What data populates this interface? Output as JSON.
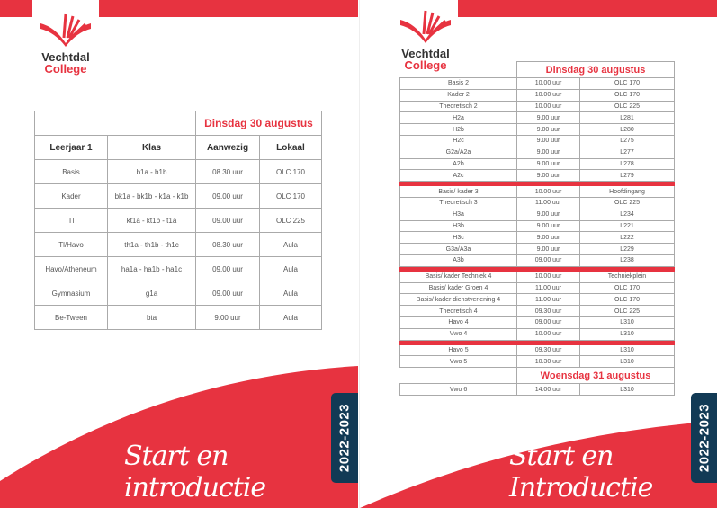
{
  "brand": {
    "name_line1": "Vechtdal",
    "name_line2": "College",
    "color": "#e73340",
    "dark": "#123a55"
  },
  "left": {
    "day": "Dinsdag 30 augustus",
    "headers": [
      "Leerjaar 1",
      "Klas",
      "Aanwezig",
      "Lokaal"
    ],
    "rows": [
      [
        "Basis",
        "b1a - b1b",
        "08.30 uur",
        "OLC 170"
      ],
      [
        "Kader",
        "bk1a - bk1b - k1a - k1b",
        "09.00 uur",
        "OLC 170"
      ],
      [
        "Tl",
        "kt1a - kt1b - t1a",
        "09.00 uur",
        "OLC 225"
      ],
      [
        "Tl/Havo",
        "th1a - th1b - th1c",
        "08.30 uur",
        "Aula"
      ],
      [
        "Havo/Atheneum",
        "ha1a - ha1b - ha1c",
        "09.00 uur",
        "Aula"
      ],
      [
        "Gymnasium",
        "g1a",
        "09.00 uur",
        "Aula"
      ],
      [
        "Be-Tween",
        "bta",
        "9.00 uur",
        "Aula"
      ]
    ],
    "title": "Start en introductie",
    "year": "2022-2023"
  },
  "right": {
    "day1": "Dinsdag 30 augustus",
    "groups": [
      [
        [
          "Basis 2",
          "10.00 uur",
          "OLC 170"
        ],
        [
          "Kader 2",
          "10.00 uur",
          "OLC 170"
        ],
        [
          "Theoretisch 2",
          "10.00 uur",
          "OLC 225"
        ],
        [
          "H2a",
          "9.00 uur",
          "L281"
        ],
        [
          "H2b",
          "9.00 uur",
          "L280"
        ],
        [
          "H2c",
          "9.00 uur",
          "L275"
        ],
        [
          "G2a/A2a",
          "9.00 uur",
          "L277"
        ],
        [
          "A2b",
          "9.00 uur",
          "L278"
        ],
        [
          "A2c",
          "9.00 uur",
          "L279"
        ]
      ],
      [
        [
          "Basis/ kader  3",
          "10.00 uur",
          "Hoofdingang"
        ],
        [
          "Theoretisch 3",
          "11.00 uur",
          "OLC 225"
        ],
        [
          "H3a",
          "9.00 uur",
          "L234"
        ],
        [
          "H3b",
          "9.00 uur",
          "L221"
        ],
        [
          "H3c",
          "9.00 uur",
          "L222"
        ],
        [
          "G3a/A3a",
          "9.00 uur",
          "L229"
        ],
        [
          "A3b",
          "09.00 uur",
          "L238"
        ]
      ],
      [
        [
          "Basis/ kader Techniek 4",
          "10.00 uur",
          "Techniekplein"
        ],
        [
          "Basis/ kader Groen 4",
          "11.00 uur",
          "OLC 170"
        ],
        [
          "Basis/ kader dienstverlening 4",
          "11.00 uur",
          "OLC 170"
        ],
        [
          "Theoretisch 4",
          "09.30 uur",
          "OLC 225"
        ],
        [
          "Havo 4",
          "09.00 uur",
          "L310"
        ],
        [
          "Vwo 4",
          "10.00 uur",
          "L310"
        ]
      ],
      [
        [
          "Havo 5",
          "09.30 uur",
          "L310"
        ],
        [
          "Vwo 5",
          "10.30 uur",
          "L310"
        ]
      ]
    ],
    "day2": "Woensdag 31 augustus",
    "day2_rows": [
      [
        "Vwo 6",
        "14.00 uur",
        "L310"
      ]
    ],
    "title": "Start en Introductie",
    "year": "2022-2023"
  }
}
